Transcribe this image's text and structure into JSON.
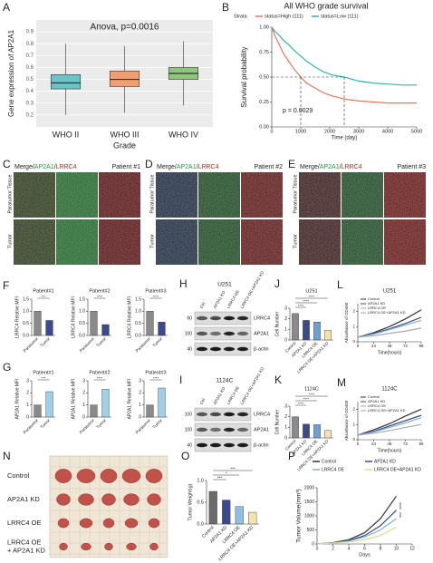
{
  "panel_a": {
    "label": "A",
    "title": "Anova, p=0.0016",
    "ylabel": "Gene expression of AP2A1",
    "xlabel": "Grade",
    "categories": [
      "WHO II",
      "WHO III",
      "WHO IV"
    ],
    "colors": [
      "#6cc3c7",
      "#f0a070",
      "#8cc77a"
    ],
    "min": [
      0.2,
      0.22,
      0.28
    ],
    "q1": [
      0.42,
      0.44,
      0.5
    ],
    "median": [
      0.47,
      0.5,
      0.55
    ],
    "q3": [
      0.54,
      0.57,
      0.6
    ],
    "max": [
      0.8,
      0.78,
      0.82
    ],
    "ylim": [
      0.1,
      1.0
    ],
    "yticks": [
      0.2,
      0.3,
      0.4,
      0.5,
      0.6,
      0.7,
      0.8,
      0.9
    ]
  },
  "panel_b": {
    "label": "B",
    "title": "All WHO grade survival",
    "legend_title": "Strata",
    "xlabel": "Time (day)",
    "ylabel": "Survival probability",
    "annotation": "p = 0.0029",
    "series": [
      {
        "name": "status=High (111)",
        "color": "#e8765a",
        "x": [
          0,
          100,
          250,
          400,
          600,
          800,
          1000,
          1200,
          1500,
          1800,
          2100,
          2500,
          3000,
          3500,
          4000,
          4500,
          5000
        ],
        "values": [
          1,
          0.92,
          0.83,
          0.74,
          0.65,
          0.57,
          0.5,
          0.44,
          0.39,
          0.34,
          0.31,
          0.28,
          0.26,
          0.25,
          0.24,
          0.24,
          0.24
        ]
      },
      {
        "name": "status=Low (111)",
        "color": "#2fb3b0",
        "x": [
          0,
          100,
          250,
          400,
          600,
          800,
          1000,
          1200,
          1500,
          1800,
          2100,
          2500,
          3000,
          3500,
          4000,
          4500,
          5000
        ],
        "values": [
          1,
          0.96,
          0.92,
          0.87,
          0.82,
          0.76,
          0.71,
          0.66,
          0.6,
          0.55,
          0.52,
          0.5,
          0.46,
          0.44,
          0.43,
          0.42,
          0.42
        ]
      }
    ],
    "median_survival": [
      1000,
      2500
    ],
    "xlim": [
      0,
      5000
    ],
    "xticks": [
      0,
      1000,
      2000,
      3000,
      4000,
      5000
    ],
    "ylim": [
      0,
      1
    ],
    "yticks": [
      {
        "value": 0,
        "label": "0.00"
      },
      {
        "value": 0.25,
        "label": "0.25"
      },
      {
        "value": 0.5,
        "label": "0.50"
      },
      {
        "value": 0.75,
        "label": "0.75"
      },
      {
        "value": 1,
        "label": "1.00"
      }
    ]
  },
  "image_panels": [
    {
      "label": "C",
      "stain": [
        {
          "text": "Merge/",
          "color": "#222"
        },
        {
          "text": "AP2A1",
          "color": "#1a9a3a"
        },
        {
          "text": "/",
          "color": "#222"
        },
        {
          "text": "LRRC4",
          "color": "#d02020"
        }
      ],
      "patient": "Patient #1",
      "rows": [
        "Paratumor Tissue",
        "Tumor"
      ]
    },
    {
      "label": "D",
      "stain": [
        {
          "text": "Merge/",
          "color": "#222"
        },
        {
          "text": "AP2A1",
          "color": "#1a9a3a"
        },
        {
          "text": "/",
          "color": "#222"
        },
        {
          "text": "LRRC4",
          "color": "#d02020"
        }
      ],
      "patient": "Patient #2",
      "rows": [
        "Paratumor Tissue",
        "Tumor"
      ]
    },
    {
      "label": "E",
      "stain": [
        {
          "text": "Merge/",
          "color": "#222"
        },
        {
          "text": "AP2A1",
          "color": "#1a9a3a"
        },
        {
          "text": "/",
          "color": "#222"
        },
        {
          "text": "LRRC4",
          "color": "#d02020"
        }
      ],
      "patient": "Patient #3",
      "rows": [
        "Paratumor Tissue",
        "Tumor"
      ]
    }
  ],
  "panel_f": {
    "label": "F",
    "charts": [
      {
        "title": "Patient#1",
        "ylabel": "LRRC4 Relative MFI",
        "categories": [
          "Paratumor",
          "Tumor"
        ],
        "values": [
          1.0,
          0.62
        ],
        "colors": [
          "#8a8a8a",
          "#3b4a8c"
        ],
        "sig": [
          "***"
        ],
        "ylim": [
          0,
          1.5
        ],
        "yticks": [
          {
            "value": 0,
            "label": "0.0"
          },
          0.5,
          {
            "value": 1,
            "label": "1.0"
          },
          1.5
        ]
      },
      {
        "title": "Patient#2",
        "ylabel": "LRRC4 Relative MFI",
        "categories": [
          "Paratumor",
          "Tumor"
        ],
        "values": [
          1.0,
          0.45
        ],
        "colors": [
          "#8a8a8a",
          "#3b4a8c"
        ],
        "sig": [
          "****"
        ],
        "ylim": [
          0,
          1.5
        ],
        "yticks": [
          {
            "value": 0,
            "label": "0.0"
          },
          0.5,
          {
            "value": 1,
            "label": "1.0"
          },
          1.5
        ]
      },
      {
        "title": "Patient#3",
        "ylabel": "LRRC4 Relative MFI",
        "categories": [
          "Paratumor",
          "Tumor"
        ],
        "values": [
          1.0,
          0.55
        ],
        "colors": [
          "#8a8a8a",
          "#3b4a8c"
        ],
        "sig": [
          "****"
        ],
        "ylim": [
          0,
          1.5
        ],
        "yticks": [
          {
            "value": 0,
            "label": "0.0"
          },
          0.5,
          {
            "value": 1,
            "label": "1.0"
          },
          1.5
        ]
      }
    ]
  },
  "panel_g": {
    "label": "G",
    "charts": [
      {
        "title": "Patient#1",
        "ylabel": "AP2A1 Relative MFI",
        "categories": [
          "Paratumor",
          "Tumor"
        ],
        "values": [
          1.0,
          2.1
        ],
        "colors": [
          "#8a8a8a",
          "#9fd0e6"
        ],
        "sig": [
          "***"
        ],
        "ylim": [
          0,
          3
        ],
        "yticks": [
          0,
          1,
          2,
          3
        ]
      },
      {
        "title": "Patient#2",
        "ylabel": "AP2A1 Relative MFI",
        "categories": [
          "Paratumor",
          "Tumor"
        ],
        "values": [
          1.0,
          2.3
        ],
        "colors": [
          "#8a8a8a",
          "#9fd0e6"
        ],
        "sig": [
          "****"
        ],
        "ylim": [
          0,
          3
        ],
        "yticks": [
          0,
          1,
          2,
          3
        ]
      },
      {
        "title": "Patient#3",
        "ylabel": "AP2A1 Relative MFI",
        "categories": [
          "Paratumor",
          "Tumor"
        ],
        "values": [
          1.0,
          2.4
        ],
        "colors": [
          "#8a8a8a",
          "#9fd0e6"
        ],
        "sig": [
          "****"
        ],
        "ylim": [
          0,
          3
        ],
        "yticks": [
          0,
          1,
          2,
          3
        ]
      }
    ]
  },
  "blots": [
    {
      "label": "H",
      "title": "U251",
      "lanes": [
        "Ctrl",
        "AP2A1 KD",
        "LRRC4 OE",
        "LRRC4 OE+AP2A1 KD"
      ],
      "proteins": [
        "LRRC4",
        "AP2A1",
        "β-actin"
      ],
      "markers": [
        "60",
        "100",
        "40"
      ]
    },
    {
      "label": "I",
      "title": "1124C",
      "lanes": [
        "Ctrl",
        "AP2A1 KD",
        "LRRC4 OE",
        "LRRC4 OE+AP2A1 KD"
      ],
      "proteins": [
        "LRRC4",
        "AP2A1",
        "β-actin"
      ],
      "markers": [
        "100",
        "100",
        "40"
      ]
    }
  ],
  "panel_j": {
    "label": "J",
    "title": "U251",
    "ylabel": "Cell Number",
    "categories": [
      "Control",
      "AP2A1 KD",
      "LRRC4 OE",
      "LRRC4 OE+AP2A1 KD"
    ],
    "values": [
      2.5,
      1.85,
      1.7,
      0.9
    ],
    "colors": [
      "#8a8a8a",
      "#3b4a8c",
      "#6f9fd0",
      "#f3e3b0"
    ],
    "sig": [
      "****",
      "****",
      "****"
    ],
    "ylim": [
      0,
      3
    ],
    "yticks": [
      0,
      1,
      2,
      3
    ]
  },
  "panel_k": {
    "label": "K",
    "title": "1124C",
    "ylabel": "Cell Number",
    "categories": [
      "Control",
      "AP2A1 KD",
      "LRRC4 OE",
      "LRRC4 OE+AP2A1 KD"
    ],
    "values": [
      2.0,
      1.3,
      1.25,
      0.7
    ],
    "colors": [
      "#8a8a8a",
      "#3b4a8c",
      "#6f9fd0",
      "#f3e3b0"
    ],
    "sig": [
      "****",
      "****",
      "****"
    ],
    "ylim": [
      0,
      3
    ],
    "yticks": [
      0,
      1,
      2,
      3
    ]
  },
  "panel_l": {
    "label": "L",
    "title": "U251",
    "xlabel": "Time(hours)",
    "ylabel": "Absorbance of OD450",
    "x": [
      0,
      24,
      48,
      72,
      96
    ],
    "series": [
      {
        "name": "Control",
        "color": "#333333",
        "values": [
          0.3,
          0.6,
          1.0,
          1.5,
          2.1
        ]
      },
      {
        "name": "AP2A1 KD",
        "color": "#3b4a8c",
        "values": [
          0.3,
          0.55,
          0.85,
          1.2,
          1.6
        ]
      },
      {
        "name": "LRRC4 OE",
        "color": "#7fb0d8",
        "values": [
          0.3,
          0.5,
          0.8,
          1.1,
          1.4
        ]
      },
      {
        "name": "LRRC4 OE+AP2A1 KD",
        "color": "#aaaaaa",
        "values": [
          0.3,
          0.4,
          0.55,
          0.7,
          0.9
        ]
      }
    ],
    "xlim": [
      0,
      96
    ],
    "xticks": [
      0,
      24,
      48,
      72,
      96
    ],
    "ylim": [
      0,
      2.5
    ],
    "yticks": [
      0,
      1,
      2
    ]
  },
  "panel_m": {
    "label": "M",
    "title": "1124C",
    "xlabel": "Time(hours)",
    "ylabel": "Absorbance of OD450",
    "x": [
      0,
      24,
      48,
      72,
      96
    ],
    "series": [
      {
        "name": "Control",
        "color": "#333333",
        "values": [
          0.3,
          0.65,
          1.05,
          1.55,
          2.0
        ]
      },
      {
        "name": "AP2A1 KD",
        "color": "#3b4a8c",
        "values": [
          0.3,
          0.55,
          0.9,
          1.25,
          1.6
        ]
      },
      {
        "name": "LRRC4 OE",
        "color": "#7fb0d8",
        "values": [
          0.3,
          0.5,
          0.8,
          1.1,
          1.45
        ]
      },
      {
        "name": "LRRC4 OE+AP2A1 KD",
        "color": "#aaaaaa",
        "values": [
          0.3,
          0.42,
          0.6,
          0.8,
          1.0
        ]
      }
    ],
    "xlim": [
      0,
      96
    ],
    "xticks": [
      0,
      24,
      48,
      72,
      96
    ],
    "ylim": [
      0,
      2.5
    ],
    "yticks": [
      0,
      1,
      2
    ]
  },
  "panel_n": {
    "label": "N",
    "rows": [
      [
        "Control"
      ],
      [
        "AP2A1 KD"
      ],
      [
        "LRRC4 OE"
      ],
      [
        "LRRC4 OE",
        "+ AP2A1 KD"
      ]
    ]
  },
  "panel_o": {
    "label": "O",
    "ylabel": "Tumor Weight(g)",
    "categories": [
      "Control",
      "AP2A1 KD",
      "LRRC4 OE",
      "LRRC4 OE+AP2A1 KD"
    ],
    "values": [
      0.75,
      0.55,
      0.4,
      0.27
    ],
    "colors": [
      "#6b6b6b",
      "#3b4a8c",
      "#8fc0e0",
      "#f3e3b0"
    ],
    "sig": [
      "***",
      "*",
      "***"
    ],
    "ylim": [
      0,
      1.0
    ],
    "yticks": [
      {
        "value": 0,
        "label": "0.0"
      },
      0.5,
      {
        "value": 1,
        "label": "1.0"
      }
    ]
  },
  "panel_p": {
    "label": "P",
    "xlabel": "Days",
    "ylabel": "Tumor Volume(mm³)",
    "x": [
      0,
      2,
      4,
      6,
      8,
      10
    ],
    "series": [
      {
        "name": "Control",
        "color": "#333333",
        "values": [
          0,
          50,
          150,
          400,
          900,
          1700
        ]
      },
      {
        "name": "AP2A1 KD",
        "color": "#3b4a8c",
        "values": [
          0,
          40,
          120,
          300,
          650,
          1200
        ]
      },
      {
        "name": "LRRC4 OE",
        "color": "#7fb0d8",
        "values": [
          0,
          40,
          100,
          250,
          500,
          900
        ]
      },
      {
        "name": "LRRC4 OE+AP2A1 KD",
        "color": "#e8d890",
        "values": [
          0,
          30,
          70,
          150,
          300,
          600
        ]
      }
    ],
    "sig": [
      "****",
      "***"
    ],
    "xlim": [
      0,
      12
    ],
    "xticks": [
      0,
      2,
      4,
      6,
      8,
      10,
      12
    ],
    "ylim": [
      0,
      2000
    ],
    "yticks": [
      0,
      500,
      1000,
      1500,
      2000
    ]
  }
}
